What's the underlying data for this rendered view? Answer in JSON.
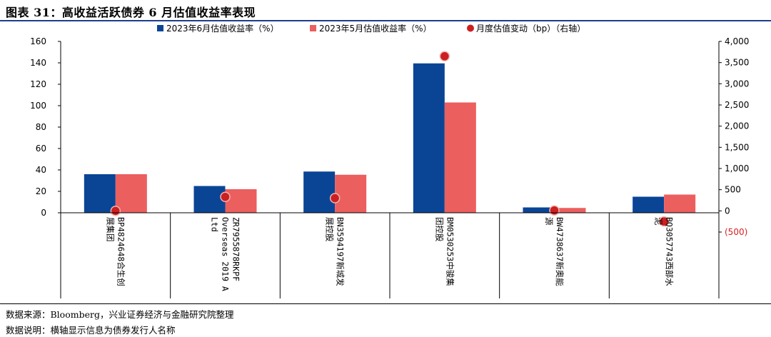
{
  "header": {
    "title": "图表 31：高收益活跃债券 6 月估值收益率表现"
  },
  "footer": {
    "source": "数据来源：Bloomberg，兴业证券经济与金融研究院整理",
    "note": "数据说明：横轴显示信息为债券发行人名称"
  },
  "colors": {
    "june": "#0a4595",
    "may": "#ec5f5f",
    "change": "#cc1f1f",
    "title_rule": "#1a3d8f"
  },
  "chart_data": {
    "type": "bar",
    "categories": [
      [
        "BP4824648合生创",
        "展集团"
      ],
      [
        "ZR7955878RKPF",
        "Overseas 2019 A",
        "Ltd"
      ],
      [
        "BN3594197新城发",
        "展控股"
      ],
      [
        "BM0530253中骏集",
        "团控股"
      ],
      [
        "BW4738637新奥能",
        "源"
      ],
      [
        "BQ3057743西部水",
        "泥"
      ]
    ],
    "series": [
      {
        "name": "2023年6月估值收益率（%）",
        "type": "bar",
        "axis": "left",
        "values": [
          36,
          25,
          38.5,
          139.5,
          5,
          15
        ]
      },
      {
        "name": "2023年5月估值收益率（%）",
        "type": "bar",
        "axis": "left",
        "values": [
          36,
          22,
          35.5,
          103,
          4.5,
          17
        ]
      },
      {
        "name": "月度估值变动（bp）（右轴）",
        "type": "scatter",
        "axis": "right",
        "values": [
          0,
          330,
          300,
          3650,
          10,
          -250
        ]
      }
    ],
    "y_left": {
      "min": 0,
      "max": 160,
      "ticks": [
        "160",
        "140",
        "120",
        "100",
        "80",
        "60",
        "40",
        "20",
        "0"
      ]
    },
    "y_right": {
      "min": -500,
      "max": 4000,
      "ticks": [
        "4,000",
        "3,500",
        "3,000",
        "2,500",
        "2,000",
        "1,500",
        "1,000",
        "500",
        "0",
        "(500)"
      ]
    },
    "legend_position": "top",
    "grid": false
  }
}
